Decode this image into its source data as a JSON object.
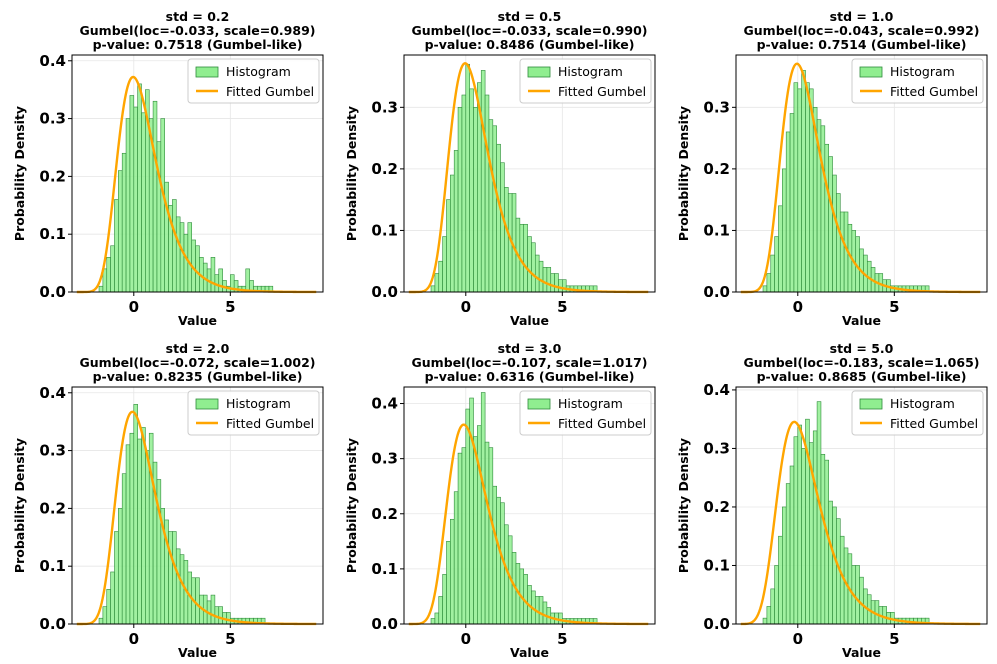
{
  "figure": {
    "layout": "2x3 grid"
  },
  "colors": {
    "bar_fill": "#90ee90",
    "bar_edge": "#2e8b3a",
    "curve": "#ffa500",
    "grid": "#e6e6e6",
    "background": "#ffffff"
  },
  "chart_data": [
    {
      "type": "bar+line",
      "title": [
        "std = 0.2",
        "Gumbel(loc=-0.033, scale=0.989)",
        "p-value: 0.7518 (Gumbel-like)"
      ],
      "xlabel": "Value",
      "ylabel": "Probability Density",
      "xlim": [
        -3.2,
        9.8
      ],
      "ylim": [
        0,
        0.41
      ],
      "xticks": [
        0,
        5
      ],
      "yticks": [
        0.0,
        0.1,
        0.2,
        0.3,
        0.4
      ],
      "grid": true,
      "legend_position": "top-right",
      "legend": [
        "Histogram",
        "Fitted Gumbel"
      ],
      "gumbel": {
        "loc": -0.033,
        "scale": 0.989
      },
      "bins": {
        "start": -1.8,
        "width": 0.2
      },
      "histogram": [
        0.01,
        0.04,
        0.06,
        0.08,
        0.16,
        0.21,
        0.24,
        0.3,
        0.34,
        0.32,
        0.36,
        0.31,
        0.35,
        0.3,
        0.33,
        0.26,
        0.3,
        0.19,
        0.15,
        0.16,
        0.13,
        0.12,
        0.1,
        0.12,
        0.09,
        0.08,
        0.06,
        0.05,
        0.04,
        0.06,
        0.03,
        0.04,
        0.02,
        0.01,
        0.03,
        0.02,
        0.01,
        0.01,
        0.04,
        0.02,
        0.01,
        0.01,
        0.01,
        0.01,
        0.01
      ],
      "fitted": {
        "peak_density": 0.372
      }
    },
    {
      "type": "bar+line",
      "title": [
        "std = 0.5",
        "Gumbel(loc=-0.033, scale=0.990)",
        "p-value: 0.8486 (Gumbel-like)"
      ],
      "xlabel": "Value",
      "ylabel": "Probability Density",
      "xlim": [
        -3.2,
        9.8
      ],
      "ylim": [
        0,
        0.385
      ],
      "xticks": [
        0,
        5
      ],
      "yticks": [
        0.0,
        0.1,
        0.2,
        0.3
      ],
      "grid": true,
      "legend_position": "top-right",
      "legend": [
        "Histogram",
        "Fitted Gumbel"
      ],
      "gumbel": {
        "loc": -0.033,
        "scale": 0.99
      },
      "bins": {
        "start": -1.8,
        "width": 0.2
      },
      "histogram": [
        0.01,
        0.03,
        0.05,
        0.09,
        0.15,
        0.19,
        0.23,
        0.3,
        0.32,
        0.37,
        0.33,
        0.3,
        0.34,
        0.36,
        0.32,
        0.28,
        0.27,
        0.24,
        0.21,
        0.17,
        0.16,
        0.16,
        0.12,
        0.11,
        0.11,
        0.09,
        0.08,
        0.06,
        0.05,
        0.04,
        0.04,
        0.03,
        0.03,
        0.02,
        0.02,
        0.01,
        0.01,
        0.01,
        0.01,
        0.01,
        0.01,
        0.01,
        0.01
      ],
      "fitted": {
        "peak_density": 0.371
      }
    },
    {
      "type": "bar+line",
      "title": [
        "std = 1.0",
        "Gumbel(loc=-0.043, scale=0.992)",
        "p-value: 0.7514 (Gumbel-like)"
      ],
      "xlabel": "Value",
      "ylabel": "Probability Density",
      "xlim": [
        -3.2,
        9.8
      ],
      "ylim": [
        0,
        0.385
      ],
      "xticks": [
        0,
        5
      ],
      "yticks": [
        0.0,
        0.1,
        0.2,
        0.3
      ],
      "grid": true,
      "legend_position": "top-right",
      "legend": [
        "Histogram",
        "Fitted Gumbel"
      ],
      "gumbel": {
        "loc": -0.043,
        "scale": 0.992
      },
      "bins": {
        "start": -1.8,
        "width": 0.2
      },
      "histogram": [
        0.01,
        0.03,
        0.06,
        0.09,
        0.14,
        0.2,
        0.26,
        0.29,
        0.34,
        0.33,
        0.36,
        0.34,
        0.33,
        0.3,
        0.28,
        0.27,
        0.24,
        0.22,
        0.19,
        0.16,
        0.13,
        0.13,
        0.11,
        0.1,
        0.09,
        0.07,
        0.06,
        0.05,
        0.04,
        0.03,
        0.03,
        0.02,
        0.02,
        0.01,
        0.01,
        0.01,
        0.01,
        0.01,
        0.01,
        0.01,
        0.01,
        0.01,
        0.01
      ],
      "fitted": {
        "peak_density": 0.371
      }
    },
    {
      "type": "bar+line",
      "title": [
        "std = 2.0",
        "Gumbel(loc=-0.072, scale=1.002)",
        "p-value: 0.8235 (Gumbel-like)"
      ],
      "xlabel": "Value",
      "ylabel": "Probability Density",
      "xlim": [
        -3.2,
        9.8
      ],
      "ylim": [
        0,
        0.41
      ],
      "xticks": [
        0,
        5
      ],
      "yticks": [
        0.0,
        0.1,
        0.2,
        0.3,
        0.4
      ],
      "grid": true,
      "legend_position": "top-right",
      "legend": [
        "Histogram",
        "Fitted Gumbel"
      ],
      "gumbel": {
        "loc": -0.072,
        "scale": 1.002
      },
      "bins": {
        "start": -1.8,
        "width": 0.2
      },
      "histogram": [
        0.01,
        0.03,
        0.06,
        0.09,
        0.16,
        0.2,
        0.26,
        0.31,
        0.33,
        0.38,
        0.32,
        0.34,
        0.3,
        0.33,
        0.28,
        0.25,
        0.2,
        0.18,
        0.16,
        0.16,
        0.13,
        0.12,
        0.11,
        0.09,
        0.08,
        0.08,
        0.05,
        0.05,
        0.04,
        0.05,
        0.03,
        0.03,
        0.02,
        0.02,
        0.01,
        0.01,
        0.01,
        0.01,
        0.01,
        0.01,
        0.01,
        0.01,
        0.01
      ],
      "fitted": {
        "peak_density": 0.366
      }
    },
    {
      "type": "bar+line",
      "title": [
        "std = 3.0",
        "Gumbel(loc=-0.107, scale=1.017)",
        "p-value: 0.6316 (Gumbel-like)"
      ],
      "xlabel": "Value",
      "ylabel": "Probability Density",
      "xlim": [
        -3.2,
        9.8
      ],
      "ylim": [
        0,
        0.43
      ],
      "xticks": [
        0,
        5
      ],
      "yticks": [
        0.0,
        0.1,
        0.2,
        0.3,
        0.4
      ],
      "grid": true,
      "legend_position": "top-right",
      "legend": [
        "Histogram",
        "Fitted Gumbel"
      ],
      "gumbel": {
        "loc": -0.107,
        "scale": 1.017
      },
      "bins": {
        "start": -1.8,
        "width": 0.2
      },
      "histogram": [
        0.01,
        0.02,
        0.05,
        0.09,
        0.15,
        0.19,
        0.24,
        0.31,
        0.32,
        0.39,
        0.41,
        0.34,
        0.36,
        0.42,
        0.33,
        0.32,
        0.25,
        0.23,
        0.22,
        0.18,
        0.16,
        0.13,
        0.11,
        0.1,
        0.09,
        0.07,
        0.06,
        0.05,
        0.05,
        0.04,
        0.03,
        0.02,
        0.02,
        0.02,
        0.01,
        0.01,
        0.01,
        0.01,
        0.01,
        0.01,
        0.01,
        0.01,
        0.01
      ],
      "fitted": {
        "peak_density": 0.361
      }
    },
    {
      "type": "bar+line",
      "title": [
        "std = 5.0",
        "Gumbel(loc=-0.183, scale=1.065)",
        "p-value: 0.8685 (Gumbel-like)"
      ],
      "xlabel": "Value",
      "ylabel": "Probability Density",
      "xlim": [
        -3.2,
        9.8
      ],
      "ylim": [
        0,
        0.405
      ],
      "xticks": [
        0,
        5
      ],
      "yticks": [
        0.0,
        0.1,
        0.2,
        0.3,
        0.4
      ],
      "grid": true,
      "legend_position": "top-right",
      "legend": [
        "Histogram",
        "Fitted Gumbel"
      ],
      "gumbel": {
        "loc": -0.183,
        "scale": 1.065
      },
      "bins": {
        "start": -1.8,
        "width": 0.2
      },
      "histogram": [
        0.01,
        0.03,
        0.06,
        0.1,
        0.15,
        0.2,
        0.24,
        0.27,
        0.32,
        0.34,
        0.3,
        0.35,
        0.31,
        0.33,
        0.38,
        0.29,
        0.28,
        0.21,
        0.2,
        0.18,
        0.15,
        0.13,
        0.12,
        0.1,
        0.1,
        0.08,
        0.06,
        0.05,
        0.04,
        0.04,
        0.03,
        0.03,
        0.02,
        0.02,
        0.01,
        0.01,
        0.01,
        0.01,
        0.01,
        0.01,
        0.01,
        0.01,
        0.01
      ],
      "fitted": {
        "peak_density": 0.345
      }
    }
  ]
}
